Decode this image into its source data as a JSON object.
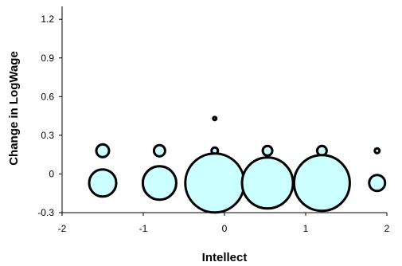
{
  "chart_data": {
    "type": "scatter",
    "title": "",
    "xlabel": "Intellect",
    "ylabel": "Change in LogWage",
    "xlim": [
      -2,
      2
    ],
    "ylim": [
      -0.3,
      1.3
    ],
    "xticks": [
      "-2",
      "-1",
      "0",
      "1",
      "2"
    ],
    "yticks": [
      "-0.3",
      "0",
      "0.3",
      "0.6",
      "0.9",
      "1.2"
    ],
    "grid": false,
    "marker_fill": "#ccffff",
    "marker_stroke": "#000000",
    "points": [
      {
        "x": -1.5,
        "y": 0.18,
        "r": 8
      },
      {
        "x": -1.5,
        "y": -0.07,
        "r": 17
      },
      {
        "x": -0.8,
        "y": 0.18,
        "r": 7
      },
      {
        "x": -0.8,
        "y": -0.07,
        "r": 21
      },
      {
        "x": -0.12,
        "y": 0.43,
        "r": 2
      },
      {
        "x": -0.12,
        "y": 0.18,
        "r": 4
      },
      {
        "x": -0.12,
        "y": -0.07,
        "r": 37
      },
      {
        "x": 0.53,
        "y": 0.18,
        "r": 6
      },
      {
        "x": 0.53,
        "y": -0.07,
        "r": 32
      },
      {
        "x": 1.2,
        "y": 0.18,
        "r": 6
      },
      {
        "x": 1.2,
        "y": -0.07,
        "r": 35
      },
      {
        "x": 1.88,
        "y": 0.18,
        "r": 3
      },
      {
        "x": 1.88,
        "y": -0.07,
        "r": 10
      }
    ]
  }
}
